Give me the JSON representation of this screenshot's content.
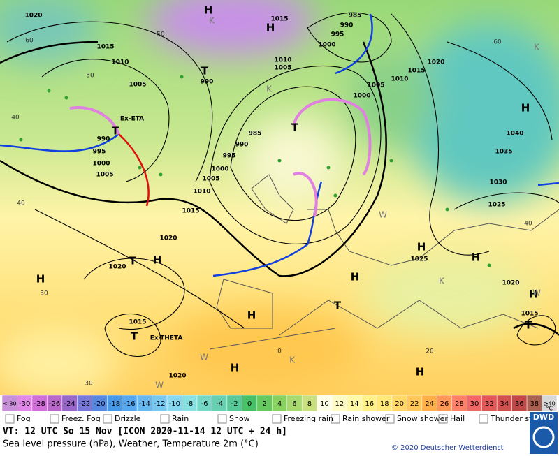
{
  "map": {
    "pressure_labels": [
      "1020",
      "1015",
      "1010",
      "1005",
      "990",
      "1015",
      "985",
      "990",
      "995",
      "1000",
      "1010",
      "1005",
      "1015",
      "1010",
      "1020",
      "1005",
      "1000",
      "985",
      "990",
      "995",
      "1000",
      "1005",
      "1010",
      "1015",
      "990",
      "995",
      "1000",
      "1005",
      "1020",
      "1020",
      "1015",
      "1020",
      "1025",
      "1025",
      "1030",
      "1035",
      "1040",
      "1020",
      "1015"
    ],
    "isotherm_labels": [
      "60",
      "50",
      "40",
      "50",
      "60",
      "40",
      "30",
      "40",
      "20",
      "30",
      "0"
    ],
    "highs": [
      "H",
      "H",
      "H",
      "H",
      "H",
      "H",
      "H",
      "H",
      "H",
      "H",
      "H",
      "H"
    ],
    "lows": [
      "T",
      "T",
      "T",
      "T",
      "T",
      "T",
      "T"
    ],
    "k_labels": [
      "K",
      "K",
      "K",
      "K",
      "K"
    ],
    "w_labels": [
      "W",
      "W",
      "W",
      "W"
    ],
    "storm_names": [
      "Ex-ETA",
      "Ex-THETA"
    ]
  },
  "temperature_scale": {
    "labels": [
      "<-30",
      "-30",
      "-28",
      "-26",
      "-24",
      "-22",
      "-20",
      "-18",
      "-16",
      "-14",
      "-12",
      "-10",
      "-8",
      "-6",
      "-4",
      "-2",
      "0",
      "2",
      "4",
      "6",
      "8",
      "10",
      "12",
      "14",
      "16",
      "18",
      "20",
      "22",
      "24",
      "26",
      "28",
      "30",
      "32",
      "34",
      "36",
      "38",
      "≥40"
    ],
    "colors": [
      "#c890d8",
      "#e088e8",
      "#d070d8",
      "#b868c8",
      "#9868c8",
      "#7878d8",
      "#5888e0",
      "#4898e8",
      "#58a8f0",
      "#68b8f0",
      "#78c8f0",
      "#88d8f0",
      "#88e0e0",
      "#78d8c8",
      "#68d0b0",
      "#58c898",
      "#48c068",
      "#68c860",
      "#88d060",
      "#a8d870",
      "#c8e080",
      "#ffffe8",
      "#fffcc8",
      "#fff8a8",
      "#fff088",
      "#ffe878",
      "#ffd868",
      "#ffc858",
      "#ffb048",
      "#ff9858",
      "#ff8068",
      "#f06868",
      "#e05858",
      "#d05050",
      "#c04848",
      "#a86050",
      "#d8d8d8"
    ],
    "unit": "°C"
  },
  "legend": [
    "Fog",
    "Freez. Fog",
    "Drizzle",
    "Rain",
    "Snow",
    "Freezing rain",
    "Rain shower",
    "Snow shower",
    "Hail",
    "Thunder storm"
  ],
  "footer": {
    "valid_time": "VT: 12 UTC So  15 Nov [ICON 2020-11-14  12 UTC + 24 h]",
    "description": "Sea level pressure (hPa), Weather, Temperature 2m (°C)",
    "copyright": "© 2020 Deutscher Wetterdienst",
    "logo": "DWD"
  }
}
